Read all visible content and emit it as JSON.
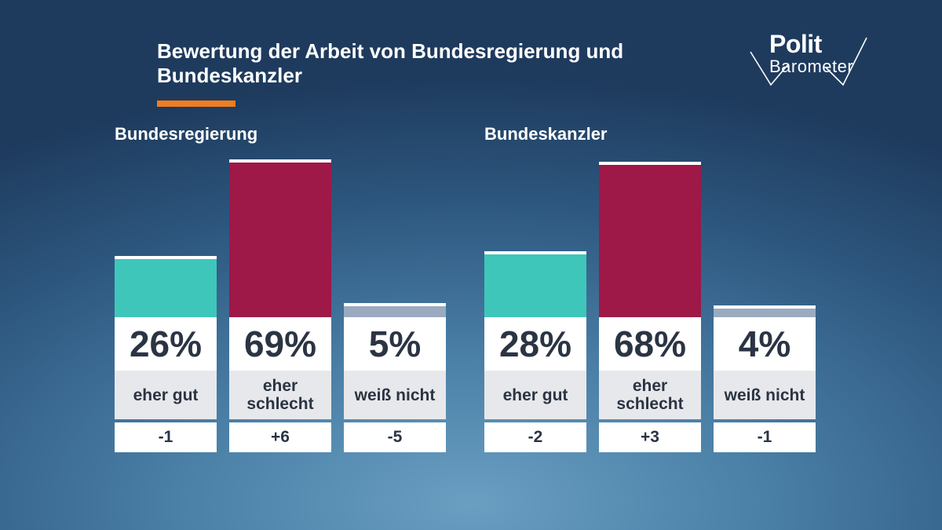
{
  "title": "Bewertung der Arbeit von Bundesregierung und Bundeskanzler",
  "logo": {
    "line1": "Polit",
    "line2": "Barometer"
  },
  "colors": {
    "accent": "#f07d1e",
    "eher_gut": "#3fc6bb",
    "eher_schlecht": "#9e1848",
    "weiss_nicht": "#9aabbf"
  },
  "chart_data": [
    {
      "type": "bar",
      "title": "Bundesregierung",
      "categories": [
        "eher gut",
        "eher\nschlecht",
        "weiß nicht"
      ],
      "values": [
        26,
        69,
        5
      ],
      "value_labels": [
        "26%",
        "69%",
        "5%"
      ],
      "changes": [
        "-1",
        "+6",
        "-5"
      ],
      "unit": "%",
      "ylim": [
        0,
        70
      ]
    },
    {
      "type": "bar",
      "title": "Bundeskanzler",
      "categories": [
        "eher gut",
        "eher\nschlecht",
        "weiß nicht"
      ],
      "values": [
        28,
        68,
        4
      ],
      "value_labels": [
        "28%",
        "68%",
        "4%"
      ],
      "changes": [
        "-2",
        "+3",
        "-1"
      ],
      "unit": "%",
      "ylim": [
        0,
        70
      ]
    }
  ]
}
